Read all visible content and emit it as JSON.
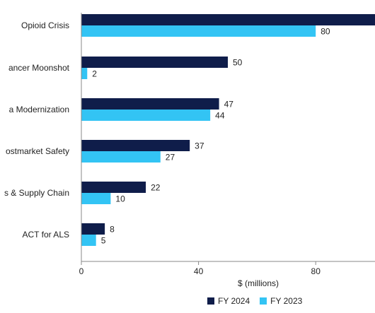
{
  "chart_data": {
    "type": "bar",
    "orientation": "horizontal",
    "categories": [
      "Opioid Crisis",
      "Cancer Moonshot",
      "Data Modernization",
      "Postmarket Safety",
      "Devices & Supply Chain",
      "ACT for ALS"
    ],
    "category_labels_visible": [
      "Opioid Crisis",
      "ancer Moonshot",
      "a Modernization",
      "ostmarket Safety",
      "s & Supply Chain",
      "ACT for ALS"
    ],
    "series": [
      {
        "name": "FY 2024",
        "color": "#0f1d4a",
        "values": [
          102,
          50,
          47,
          37,
          22,
          8
        ],
        "labels": [
          "",
          "50",
          "47",
          "37",
          "22",
          "8"
        ]
      },
      {
        "name": "FY 2023",
        "color": "#33c4f4",
        "values": [
          80,
          2,
          44,
          27,
          10,
          5
        ],
        "labels": [
          "80",
          "2",
          "44",
          "27",
          "10",
          "5"
        ]
      }
    ],
    "xlabel": "$ (millions)",
    "xlim": [
      0,
      100
    ],
    "xticks": [
      0,
      40,
      80
    ],
    "grid": false,
    "legend_position": "bottom"
  },
  "legend": {
    "fy2024": "FY 2024",
    "fy2023": "FY 2023"
  }
}
